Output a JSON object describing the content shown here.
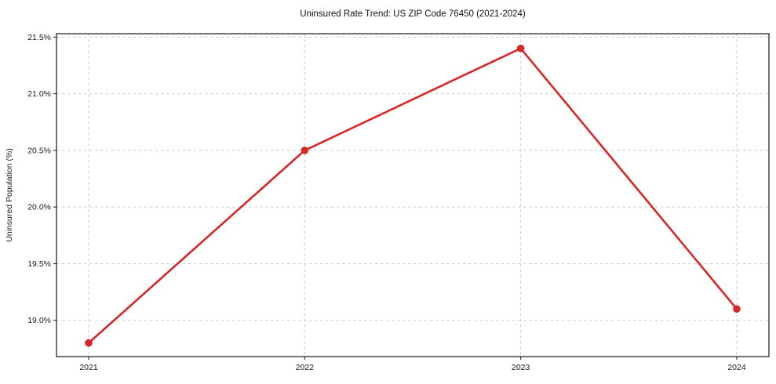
{
  "chart_data": {
    "type": "line",
    "title": "Uninsured Rate Trend: US ZIP Code 76450 (2021-2024)",
    "xlabel": "",
    "ylabel": "Uninsured Population (%)",
    "categories": [
      "2021",
      "2022",
      "2023",
      "2024"
    ],
    "values": [
      18.8,
      20.5,
      21.4,
      19.1
    ],
    "ylim": [
      18.68,
      21.53
    ],
    "yticks": [
      19.0,
      19.5,
      20.0,
      20.5,
      21.0,
      21.5
    ],
    "ytick_labels": [
      "19.0%",
      "19.5%",
      "20.0%",
      "20.5%",
      "21.0%",
      "21.5%"
    ],
    "grid": true,
    "grid_style": "dashed",
    "legend": false,
    "line_color": "#d62728",
    "marker": "circle",
    "grid_color": "#cccccc",
    "frame_color": "#262626",
    "background": "#ffffff"
  }
}
